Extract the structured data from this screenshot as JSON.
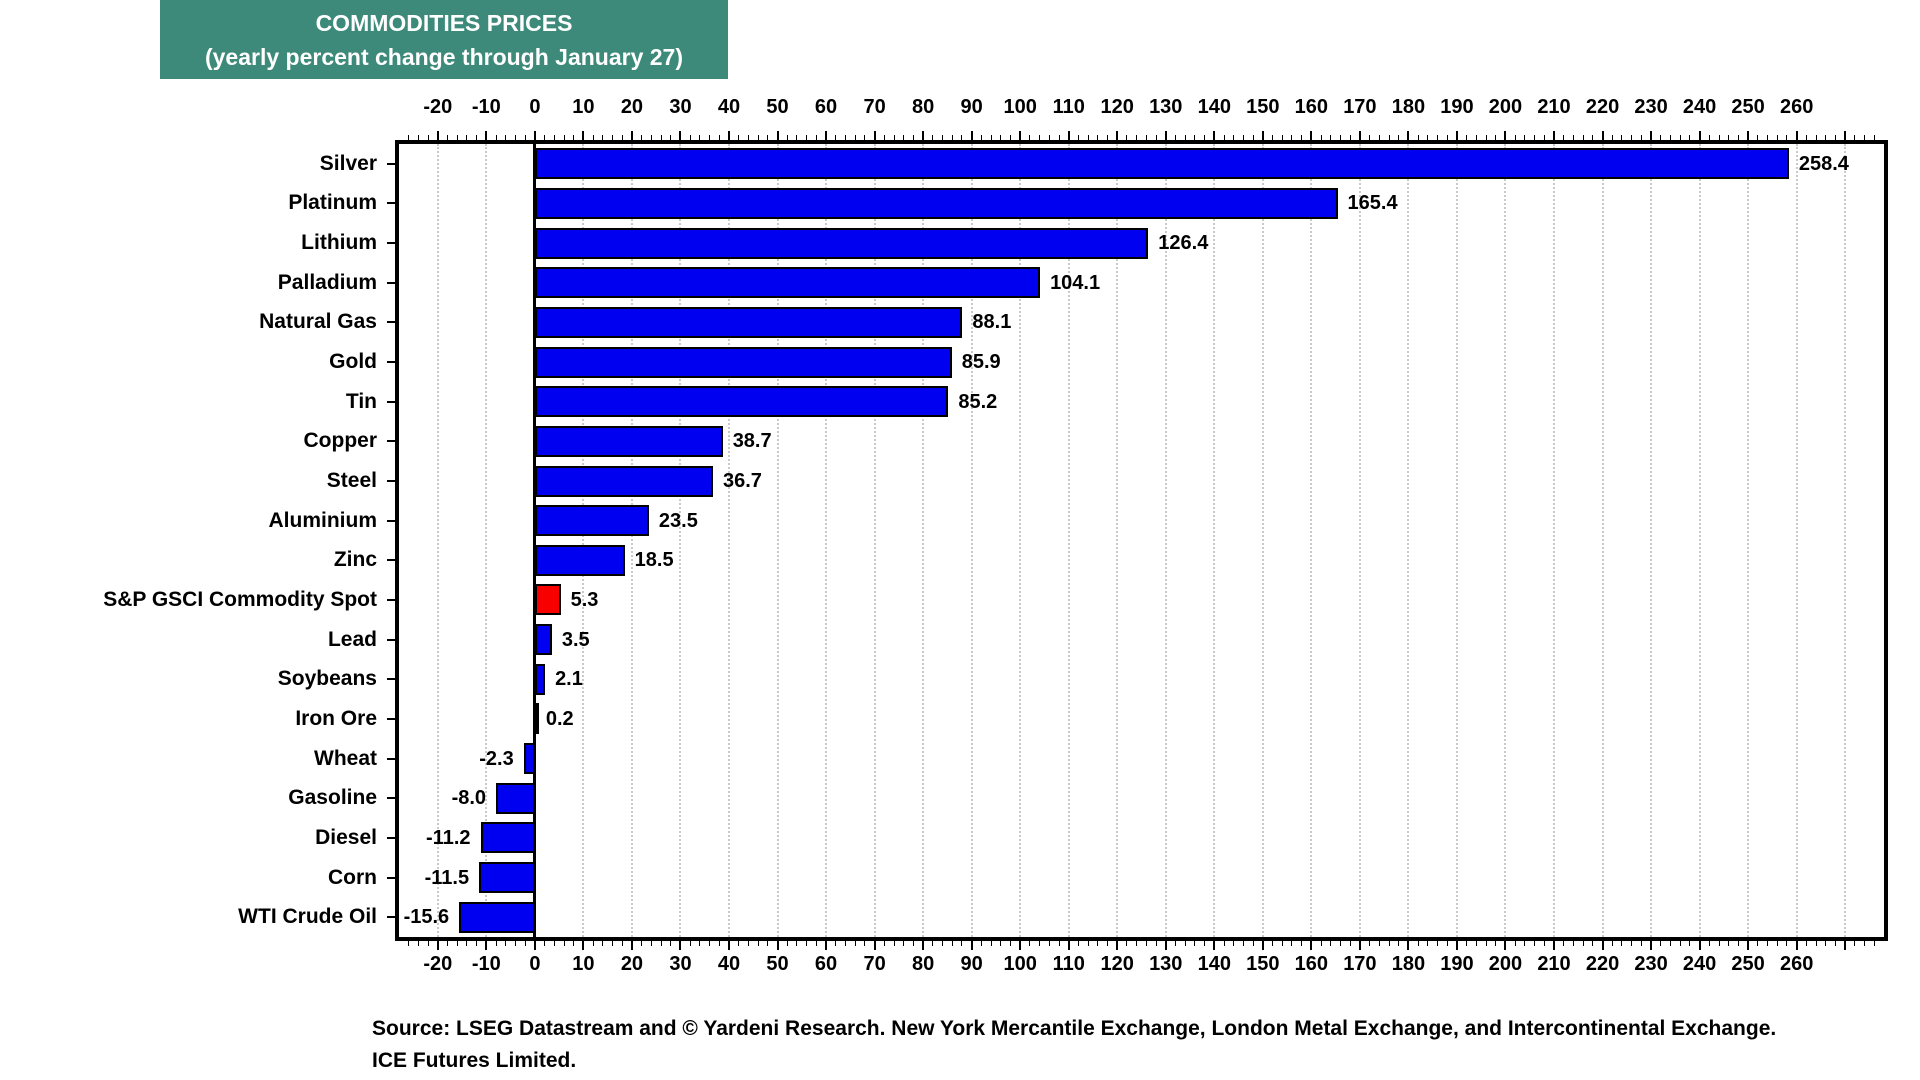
{
  "title": {
    "line1": "COMMODITIES PRICES",
    "line2": "(yearly percent change through January 27)"
  },
  "source": {
    "line1": "Source: LSEG Datastream and © Yardeni Research. New York Mercantile Exchange, London Metal Exchange, and Intercontinental Exchange.",
    "line2": "ICE Futures Limited."
  },
  "colors": {
    "title_bg": "#3d8a7a",
    "title_text": "#ffffff",
    "bar_blue": "#0000f0",
    "bar_red": "#f80000",
    "bar_border": "#000000",
    "gridline": "#c9c9c9",
    "axis": "#000000"
  },
  "chart_data": {
    "type": "bar",
    "orientation": "horizontal",
    "title": "COMMODITIES PRICES",
    "subtitle": "(yearly percent change through January 27)",
    "categories": [
      "Silver",
      "Platinum",
      "Lithium",
      "Palladium",
      "Natural Gas",
      "Gold",
      "Tin",
      "Copper",
      "Steel",
      "Aluminium",
      "Zinc",
      "S&P GSCI Commodity Spot",
      "Lead",
      "Soybeans",
      "Iron Ore",
      "Wheat",
      "Gasoline",
      "Diesel",
      "Corn",
      "WTI Crude Oil"
    ],
    "values": [
      258.4,
      165.4,
      126.4,
      104.1,
      88.1,
      85.9,
      85.2,
      38.7,
      36.7,
      23.5,
      18.5,
      5.3,
      3.5,
      2.1,
      0.2,
      -2.3,
      -8.0,
      -11.2,
      -11.5,
      -15.6
    ],
    "highlight": {
      "category": "S&P GSCI Commodity Spot",
      "index": 11,
      "color_role": "red"
    },
    "value_label_decimals": 1,
    "xlim": [
      -28,
      278
    ],
    "x_ticks": {
      "min": -20,
      "max": 260,
      "step": 10,
      "minor_step": 2,
      "major_tick_extra_to": 270
    },
    "grid": "vertical dotted gridlines every 10",
    "axis_positions": [
      "top",
      "bottom"
    ],
    "legend": "none"
  }
}
